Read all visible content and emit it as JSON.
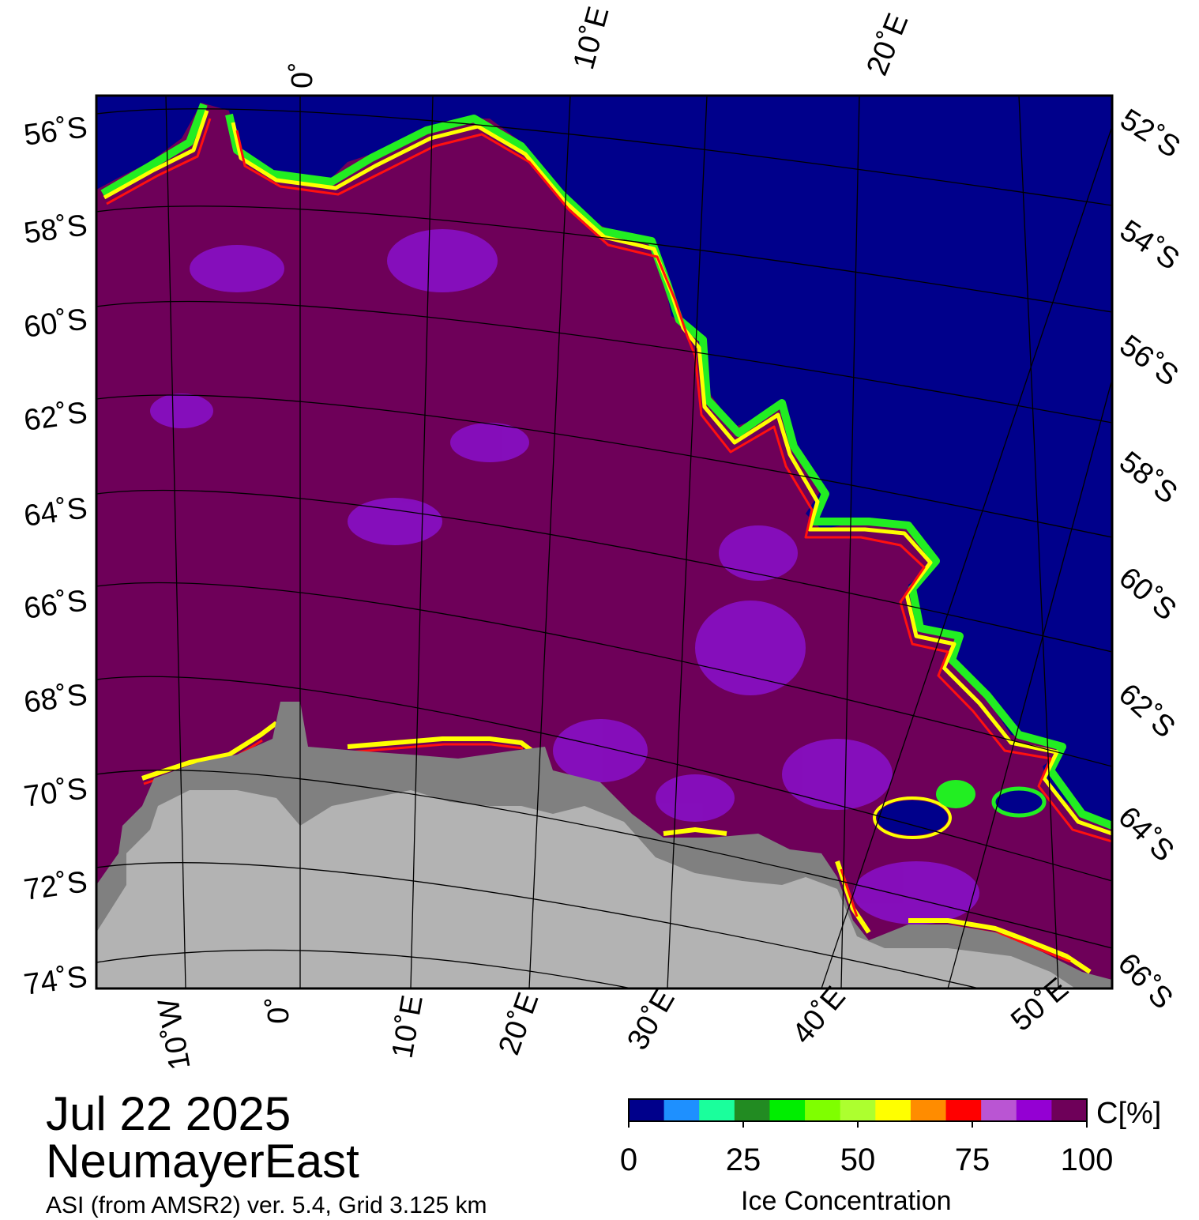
{
  "map": {
    "colors": {
      "open_water": "#00008b",
      "full_ice": "#6e0059",
      "ice_patch": "#8a10cc",
      "land_ice": "#b3b3b3",
      "ice_shelf": "#808080",
      "edge_yellow": "#ffff00",
      "edge_green": "#22ee22",
      "edge_red": "#ff1010"
    },
    "lat_labels_left": [
      "56˚S",
      "58˚S",
      "60˚S",
      "62˚S",
      "64˚S",
      "66˚S",
      "68˚S",
      "70˚S",
      "72˚S",
      "74˚S"
    ],
    "lat_labels_right": [
      "52˚S",
      "54˚S",
      "56˚S",
      "58˚S",
      "60˚S",
      "62˚S",
      "64˚S",
      "66˚S"
    ],
    "lon_labels_top": [
      "0˚",
      "10˚E",
      "20˚E"
    ],
    "lon_labels_bottom": [
      "10˚W",
      "0˚",
      "10˚E",
      "20˚E",
      "30˚E",
      "40˚E",
      "50˚E"
    ]
  },
  "info": {
    "date": "Jul 22 2025",
    "region": "NeumayerEast",
    "source": "ASI (from AMSR2) ver. 5.4,  Grid 3.125 km"
  },
  "colorbar": {
    "unit_label": "C[%]",
    "title": "Ice Concentration",
    "tick_labels": [
      "0",
      "25",
      "50",
      "75",
      "100"
    ],
    "tick_values": [
      0,
      25,
      50,
      75,
      100
    ],
    "range": [
      0,
      100
    ],
    "colors": [
      "#00008b",
      "#1e90ff",
      "#1aff9c",
      "#228b22",
      "#00ee00",
      "#7fff00",
      "#adff2f",
      "#ffff00",
      "#ff8c00",
      "#ff0000",
      "#ba55d3",
      "#9400d3",
      "#6e0059"
    ]
  }
}
